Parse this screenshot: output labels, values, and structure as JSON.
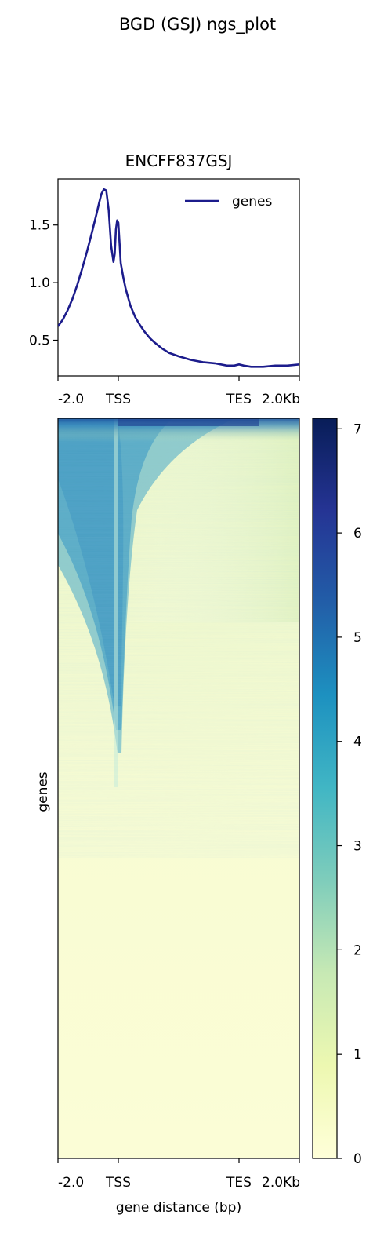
{
  "figure": {
    "suptitle": "BGD (GSJ) ngs_plot"
  },
  "chart_data": [
    {
      "type": "line",
      "title": "ENCFF837GSJ",
      "xlabel": "",
      "ylabel": "",
      "xlim": [
        0,
        1
      ],
      "ylim": [
        0.19,
        1.9
      ],
      "xticks": [
        {
          "value": 0.0,
          "label": "-2.0"
        },
        {
          "value": 0.25,
          "label": "TSS"
        },
        {
          "value": 0.75,
          "label": "TES"
        },
        {
          "value": 1.0,
          "label": "2.0Kb"
        }
      ],
      "yticks": [
        0.5,
        1.0,
        1.5
      ],
      "ytick_labels": [
        "0.5",
        "1.0",
        "1.5"
      ],
      "legend": {
        "position": "top-right",
        "entries": [
          "genes"
        ]
      },
      "series": [
        {
          "name": "genes",
          "color": "#1c1c8c",
          "x": [
            0.0,
            0.02,
            0.04,
            0.06,
            0.08,
            0.1,
            0.12,
            0.14,
            0.16,
            0.17,
            0.18,
            0.19,
            0.2,
            0.21,
            0.22,
            0.23,
            0.235,
            0.24,
            0.245,
            0.25,
            0.255,
            0.26,
            0.27,
            0.28,
            0.3,
            0.32,
            0.34,
            0.36,
            0.38,
            0.4,
            0.43,
            0.46,
            0.5,
            0.55,
            0.6,
            0.65,
            0.7,
            0.73,
            0.75,
            0.77,
            0.8,
            0.85,
            0.9,
            0.95,
            1.0
          ],
          "y": [
            0.62,
            0.68,
            0.76,
            0.86,
            0.98,
            1.12,
            1.27,
            1.43,
            1.6,
            1.69,
            1.77,
            1.81,
            1.8,
            1.63,
            1.32,
            1.18,
            1.25,
            1.46,
            1.54,
            1.52,
            1.35,
            1.17,
            1.05,
            0.95,
            0.8,
            0.7,
            0.63,
            0.57,
            0.52,
            0.48,
            0.43,
            0.39,
            0.36,
            0.33,
            0.31,
            0.3,
            0.28,
            0.28,
            0.29,
            0.28,
            0.27,
            0.27,
            0.28,
            0.28,
            0.29
          ]
        }
      ]
    },
    {
      "type": "heatmap",
      "title": "",
      "xlabel": "gene distance (bp)",
      "ylabel": "genes",
      "xticks": [
        {
          "value": 0.0,
          "label": "-2.0"
        },
        {
          "value": 0.25,
          "label": "TSS"
        },
        {
          "value": 0.75,
          "label": "TES"
        },
        {
          "value": 1.0,
          "label": "2.0Kb"
        }
      ],
      "colormap": "YlGnBu",
      "colorbar": {
        "min": 0,
        "max": 7.1,
        "ticks": [
          0,
          1,
          2,
          3,
          4,
          5,
          6,
          7
        ],
        "tick_labels": [
          "0",
          "1",
          "2",
          "3",
          "4",
          "5",
          "6",
          "7"
        ]
      },
      "description_rows_sorted": "genes sorted by signal descending; strong enrichment around TSS in top ~45% of rows, very high signal in top rows spanning TSS to TES"
    }
  ]
}
